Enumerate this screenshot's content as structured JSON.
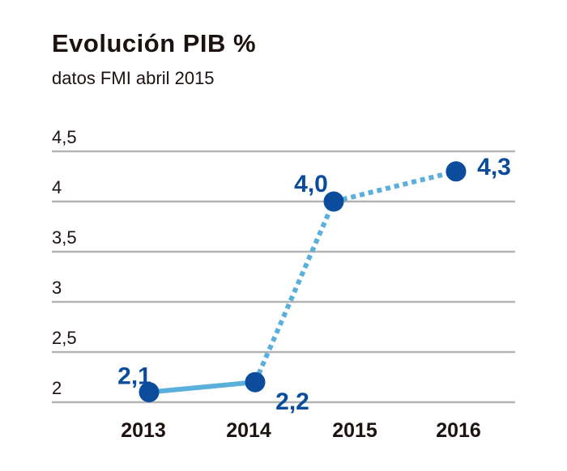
{
  "title": "Evolución PIB %",
  "subtitle": "datos FMI abril 2015",
  "colors": {
    "point": "#0b4d9c",
    "label": "#0b4d9c",
    "line": "#5aafdb",
    "grid": "#b3b3b3",
    "text": "#1c1210"
  },
  "chart_data": {
    "type": "line",
    "title": "Evolución PIB %",
    "subtitle": "datos FMI abril 2015",
    "categories": [
      "2013",
      "2014",
      "2015",
      "2016"
    ],
    "series": [
      {
        "values": [
          2.1,
          2.2,
          4.0,
          4.3
        ],
        "labels": [
          "2,1",
          "2,2",
          "4,0",
          "4,3"
        ],
        "segment_styles": [
          "solid",
          "dotted",
          "dotted"
        ]
      }
    ],
    "yticks": [
      {
        "value": 2,
        "label": "2"
      },
      {
        "value": 2.5,
        "label": "2,5"
      },
      {
        "value": 3,
        "label": "3"
      },
      {
        "value": 3.5,
        "label": "3,5"
      },
      {
        "value": 4,
        "label": "4"
      },
      {
        "value": 4.5,
        "label": "4,5"
      }
    ],
    "ylim": [
      2,
      4.5
    ],
    "grid": true,
    "legend": "none"
  }
}
